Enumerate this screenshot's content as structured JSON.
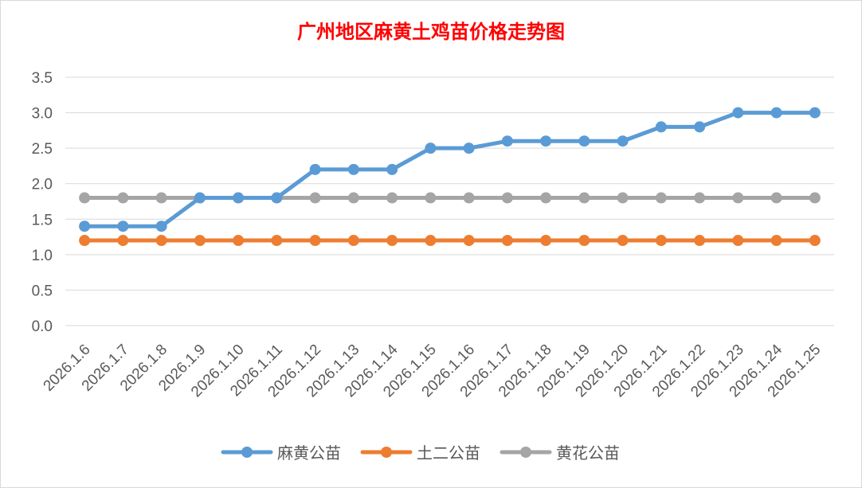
{
  "chart_data": {
    "type": "line",
    "title": "广州地区麻黄土鸡苗价格走势图",
    "categories": [
      "2026.1.6",
      "2026.1.7",
      "2026.1.8",
      "2026.1.9",
      "2026.1.10",
      "2026.1.11",
      "2026.1.12",
      "2026.1.13",
      "2026.1.14",
      "2026.1.15",
      "2026.1.16",
      "2026.1.17",
      "2026.1.18",
      "2026.1.19",
      "2026.1.20",
      "2026.1.21",
      "2026.1.22",
      "2026.1.23",
      "2026.1.24",
      "2026.1.25"
    ],
    "yticks": [
      "0.0",
      "0.5",
      "1.0",
      "1.5",
      "2.0",
      "2.5",
      "3.0",
      "3.5"
    ],
    "ylim": [
      0,
      3.5
    ],
    "grid": true,
    "legend_position": "bottom",
    "series": [
      {
        "name": "麻黄公苗",
        "color": "#5b9bd5",
        "values": [
          1.4,
          1.4,
          1.4,
          1.8,
          1.8,
          1.8,
          2.2,
          2.2,
          2.2,
          2.5,
          2.5,
          2.6,
          2.6,
          2.6,
          2.6,
          2.8,
          2.8,
          3.0,
          3.0,
          3.0
        ]
      },
      {
        "name": "土二公苗",
        "color": "#ed7d31",
        "values": [
          1.2,
          1.2,
          1.2,
          1.2,
          1.2,
          1.2,
          1.2,
          1.2,
          1.2,
          1.2,
          1.2,
          1.2,
          1.2,
          1.2,
          1.2,
          1.2,
          1.2,
          1.2,
          1.2,
          1.2
        ]
      },
      {
        "name": "黄花公苗",
        "color": "#a5a5a5",
        "values": [
          1.8,
          1.8,
          1.8,
          1.8,
          1.8,
          1.8,
          1.8,
          1.8,
          1.8,
          1.8,
          1.8,
          1.8,
          1.8,
          1.8,
          1.8,
          1.8,
          1.8,
          1.8,
          1.8,
          1.8
        ]
      }
    ]
  }
}
